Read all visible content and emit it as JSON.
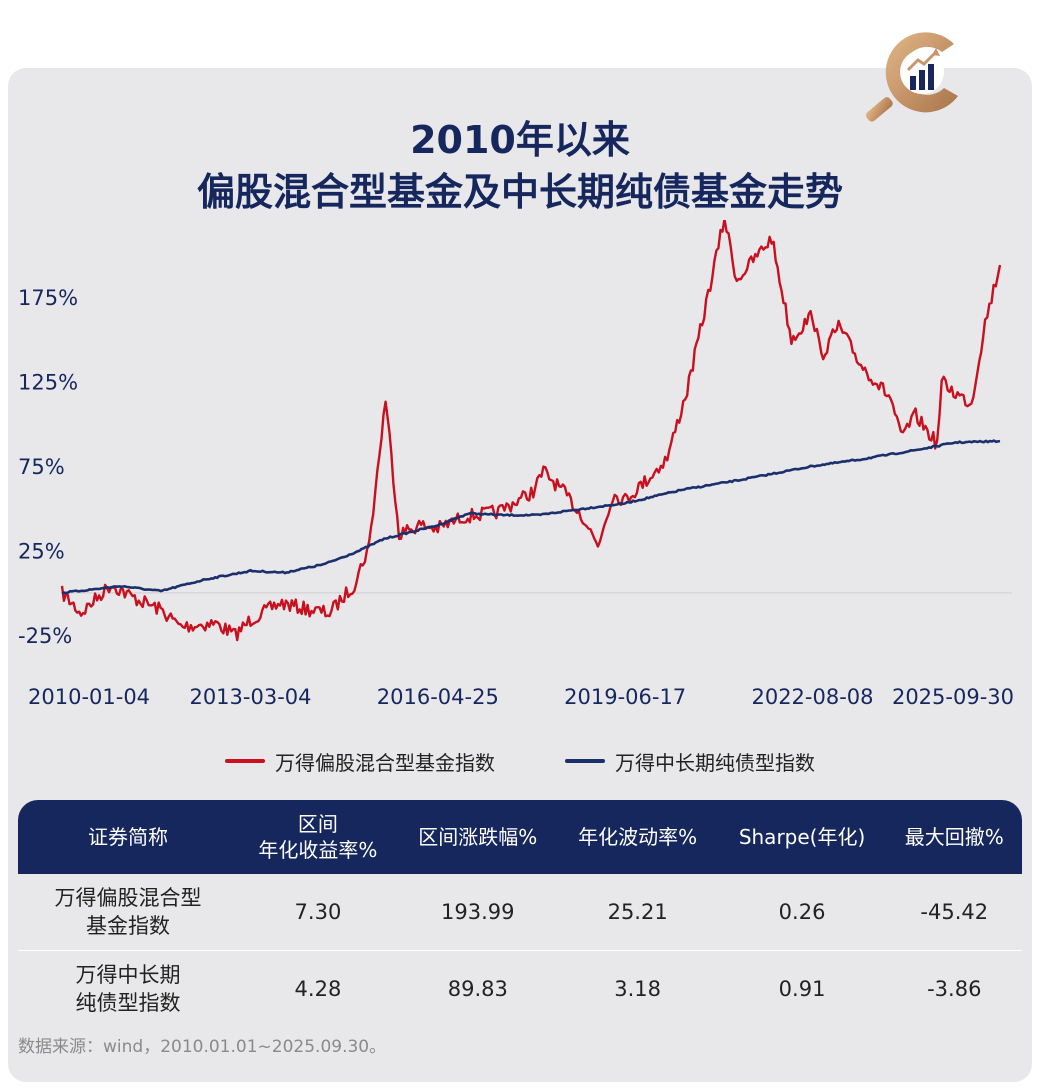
{
  "title": {
    "line1": "2010年以来",
    "line2": "偏股混合型基金及中长期纯债基金走势"
  },
  "chart_data": {
    "type": "line",
    "x_ticks": [
      "2010-01-04",
      "2013-03-04",
      "2016-04-25",
      "2019-06-17",
      "2022-08-08",
      "2025-09-30"
    ],
    "y_ticks": [
      "-25%",
      "25%",
      "75%",
      "125%",
      "175%"
    ],
    "y_tick_values": [
      -25,
      25,
      75,
      125,
      175
    ],
    "ylim": [
      -35,
      210
    ],
    "series": [
      {
        "name": "万得偏股混合型基金指数",
        "color": "#c8101e",
        "points": [
          [
            "2010-01-04",
            0
          ],
          [
            "2010-05-01",
            -12
          ],
          [
            "2010-11-01",
            5
          ],
          [
            "2011-03-01",
            -2
          ],
          [
            "2011-09-01",
            -10
          ],
          [
            "2012-01-01",
            -20
          ],
          [
            "2012-08-01",
            -18
          ],
          [
            "2012-12-01",
            -25
          ],
          [
            "2013-03-04",
            -16
          ],
          [
            "2013-09-01",
            -6
          ],
          [
            "2014-03-01",
            -10
          ],
          [
            "2014-07-01",
            -12
          ],
          [
            "2014-12-01",
            5
          ],
          [
            "2015-03-01",
            28
          ],
          [
            "2015-06-10",
            115
          ],
          [
            "2015-09-01",
            35
          ],
          [
            "2016-01-01",
            40
          ],
          [
            "2016-04-25",
            38
          ],
          [
            "2016-10-01",
            45
          ],
          [
            "2017-05-01",
            48
          ],
          [
            "2017-12-01",
            60
          ],
          [
            "2018-02-01",
            72
          ],
          [
            "2018-06-01",
            60
          ],
          [
            "2018-10-01",
            45
          ],
          [
            "2019-01-01",
            28
          ],
          [
            "2019-04-01",
            58
          ],
          [
            "2019-06-17",
            55
          ],
          [
            "2019-12-01",
            70
          ],
          [
            "2020-03-01",
            80
          ],
          [
            "2020-07-01",
            120
          ],
          [
            "2020-10-01",
            160
          ],
          [
            "2021-02-15",
            222
          ],
          [
            "2021-05-01",
            185
          ],
          [
            "2021-12-01",
            210
          ],
          [
            "2022-04-01",
            150
          ],
          [
            "2022-08-08",
            165
          ],
          [
            "2022-10-01",
            140
          ],
          [
            "2023-01-15",
            158
          ],
          [
            "2023-06-01",
            135
          ],
          [
            "2023-12-01",
            115
          ],
          [
            "2024-02-01",
            92
          ],
          [
            "2024-05-01",
            105
          ],
          [
            "2024-09-10",
            88
          ],
          [
            "2024-10-08",
            125
          ],
          [
            "2025-01-01",
            118
          ],
          [
            "2025-04-08",
            112
          ],
          [
            "2025-07-01",
            160
          ],
          [
            "2025-09-30",
            194
          ]
        ]
      },
      {
        "name": "万得中长期纯债型指数",
        "color": "#1b2f6b",
        "points": [
          [
            "2010-01-04",
            0
          ],
          [
            "2011-01-01",
            4
          ],
          [
            "2011-09-01",
            1
          ],
          [
            "2012-06-01",
            8
          ],
          [
            "2013-03-04",
            13
          ],
          [
            "2013-10-01",
            12
          ],
          [
            "2014-06-01",
            17
          ],
          [
            "2015-01-01",
            25
          ],
          [
            "2015-06-01",
            32
          ],
          [
            "2016-04-25",
            40
          ],
          [
            "2016-11-01",
            47
          ],
          [
            "2017-06-01",
            46
          ],
          [
            "2018-01-01",
            46
          ],
          [
            "2018-08-01",
            49
          ],
          [
            "2019-06-17",
            53
          ],
          [
            "2020-06-01",
            61
          ],
          [
            "2021-06-01",
            67
          ],
          [
            "2022-08-08",
            75
          ],
          [
            "2023-06-01",
            79
          ],
          [
            "2024-06-01",
            85
          ],
          [
            "2025-01-01",
            89
          ],
          [
            "2025-09-30",
            89.8
          ]
        ]
      }
    ]
  },
  "legend": [
    {
      "label": "万得偏股混合型基金指数",
      "color": "#c8101e"
    },
    {
      "label": "万得中长期纯债型指数",
      "color": "#1b2f6b"
    }
  ],
  "table": {
    "headers": [
      {
        "line1": "证券简称",
        "line2": ""
      },
      {
        "line1": "区间",
        "line2": "年化收益率%"
      },
      {
        "line1": "区间涨跌幅%",
        "line2": ""
      },
      {
        "line1": "年化波动率%",
        "line2": ""
      },
      {
        "line1": "Sharpe(年化)",
        "line2": ""
      },
      {
        "line1": "最大回撤%",
        "line2": ""
      }
    ],
    "rows": [
      {
        "name1": "万得偏股混合型",
        "name2": "基金指数",
        "cells": [
          "7.30",
          "193.99",
          "25.21",
          "0.26",
          "-45.42"
        ]
      },
      {
        "name1": "万得中长期",
        "name2": "纯债型指数",
        "cells": [
          "4.28",
          "89.83",
          "3.18",
          "0.91",
          "-3.86"
        ]
      }
    ]
  },
  "source": "数据来源：wind，2010.01.01~2025.09.30。",
  "colors": {
    "navy": "#16275e",
    "red": "#c8101e",
    "gold": "#c9966a",
    "card": "#e8e8ea"
  }
}
